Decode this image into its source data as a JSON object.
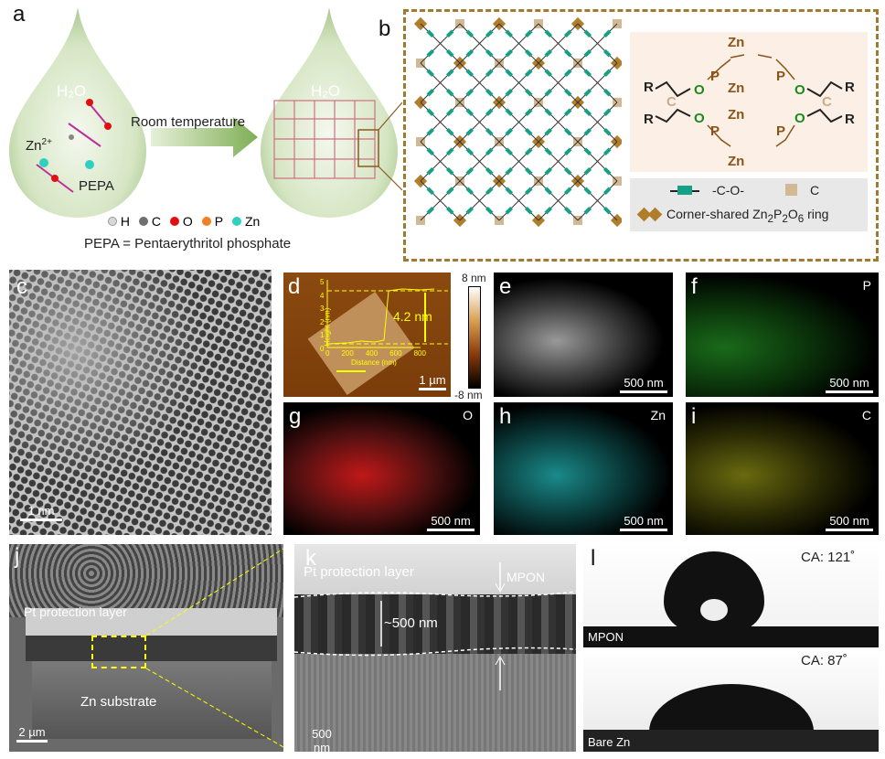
{
  "panel_labels": {
    "a": "a",
    "b": "b",
    "c": "c",
    "d": "d",
    "e": "e",
    "f": "f",
    "g": "g",
    "h": "h",
    "i": "i",
    "j": "j",
    "k": "k",
    "l": "l"
  },
  "panel_a": {
    "water_left": "H₂O",
    "water_right": "H₂O",
    "zn_ion": "Zn",
    "zn_charge": "2+",
    "pepa": "PEPA",
    "arrow_label": "Room temperature",
    "legend": [
      {
        "label": "H",
        "color": "#d8d8d8"
      },
      {
        "label": "C",
        "color": "#707070"
      },
      {
        "label": "O",
        "color": "#e01010"
      },
      {
        "label": "P",
        "color": "#f08020"
      },
      {
        "label": "Zn",
        "color": "#30d0c0"
      }
    ],
    "definition": "PEPA = Pentaerythritol phosphate"
  },
  "panel_b": {
    "atoms": {
      "zn": "Zn",
      "o": "O",
      "p": "P",
      "c": "C",
      "r": "R"
    },
    "legend_co": "-C-O-",
    "legend_c": "C",
    "legend_ring_prefix": "Corner-shared Zn",
    "legend_ring_sub1": "2",
    "legend_ring_p": "P",
    "legend_ring_sub2": "2",
    "legend_ring_o": "O",
    "legend_ring_sub3": "6",
    "legend_ring_suffix": " ring",
    "colors": {
      "ring": "#b07d2a",
      "co_bond": "#16a085",
      "carbon": "#d2b995",
      "box_border": "#a07a30",
      "chem_bg": "#fcefe6",
      "legend_bg": "#e8e8e8"
    }
  },
  "panel_c": {
    "scale": "1 nm"
  },
  "panel_d": {
    "colorbar_max": "8 nm",
    "colorbar_min": "-8 nm",
    "y_axis_label": "Height (nm)",
    "x_axis_label": "Distance (nm)",
    "y_ticks": [
      "0",
      "1",
      "2",
      "3",
      "4",
      "5"
    ],
    "x_ticks": [
      "0",
      "200",
      "400",
      "600",
      "800"
    ],
    "step_height": "4.2 nm",
    "scale": "1 µm"
  },
  "panel_e": {
    "scale": "500 nm"
  },
  "panel_f": {
    "element": "P",
    "scale": "500 nm",
    "color": "#2aa02a"
  },
  "panel_g": {
    "element": "O",
    "scale": "500 nm",
    "color": "#e02020"
  },
  "panel_h": {
    "element": "Zn",
    "scale": "500 nm",
    "color": "#20a0a0"
  },
  "panel_i": {
    "element": "C",
    "scale": "500 nm",
    "color": "#c8c820"
  },
  "panel_j": {
    "pt_label": "Pt protection layer",
    "zn_label": "Zn substrate",
    "scale": "2 µm"
  },
  "panel_k": {
    "pt_label": "Pt protection layer",
    "mpon_label": "MPON",
    "thickness": "~500 nm",
    "scale": "500 nm"
  },
  "panel_l": {
    "top_ca": "CA: 121˚",
    "top_label": "MPON",
    "bottom_ca": "CA: 87˚",
    "bottom_label": "Bare Zn"
  }
}
